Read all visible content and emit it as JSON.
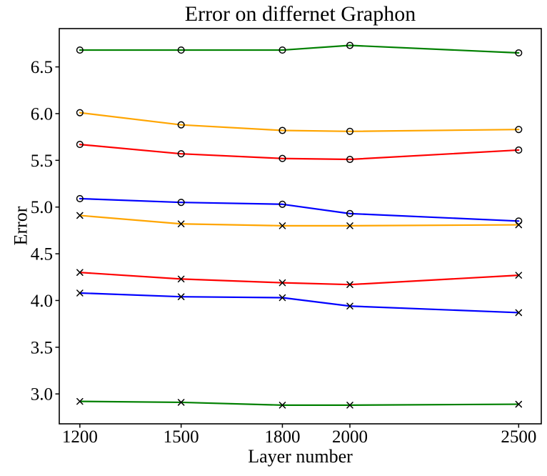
{
  "figure": {
    "title": "Error on differnet Graphon",
    "xlabel": "Layer number",
    "ylabel": "Error"
  },
  "chart_data": {
    "type": "line",
    "title": "Error on differnet Graphon",
    "xlabel": "Layer number",
    "ylabel": "Error",
    "grid": false,
    "legend": "none",
    "x": [
      1200,
      1500,
      1800,
      2000,
      2500
    ],
    "xlim": [
      1139,
      2567
    ],
    "ylim": [
      2.68,
      6.91
    ],
    "xticks": {
      "values": [
        1200,
        1500,
        1800,
        2000,
        2500
      ],
      "labels": [
        "1200",
        "1500",
        "1800",
        "2000",
        "2500"
      ]
    },
    "yticks": {
      "values": [
        3.0,
        3.5,
        4.0,
        4.5,
        5.0,
        5.5,
        6.0,
        6.5
      ],
      "labels": [
        "3.0",
        "3.5",
        "4.0",
        "4.5",
        "5.0",
        "5.5",
        "6.0",
        "6.5"
      ]
    },
    "marker_edge_color": "#000000",
    "colors": {
      "green": "#008000",
      "orange": "#FFA500",
      "red": "#FF0000",
      "blue": "#0000FF"
    },
    "series": [
      {
        "name": "green-circle",
        "color": "#008000",
        "marker": "circle",
        "values": [
          6.68,
          6.68,
          6.68,
          6.73,
          6.65
        ]
      },
      {
        "name": "orange-circle",
        "color": "#FFA500",
        "marker": "circle",
        "values": [
          6.01,
          5.88,
          5.82,
          5.81,
          5.83
        ]
      },
      {
        "name": "red-circle",
        "color": "#FF0000",
        "marker": "circle",
        "values": [
          5.67,
          5.57,
          5.52,
          5.51,
          5.61
        ]
      },
      {
        "name": "blue-circle",
        "color": "#0000FF",
        "marker": "circle",
        "values": [
          5.09,
          5.05,
          5.03,
          4.93,
          4.85
        ]
      },
      {
        "name": "orange-x",
        "color": "#FFA500",
        "marker": "x",
        "values": [
          4.91,
          4.82,
          4.8,
          4.8,
          4.81
        ]
      },
      {
        "name": "red-x",
        "color": "#FF0000",
        "marker": "x",
        "values": [
          4.3,
          4.23,
          4.19,
          4.17,
          4.27
        ]
      },
      {
        "name": "blue-x",
        "color": "#0000FF",
        "marker": "x",
        "values": [
          4.08,
          4.04,
          4.03,
          3.94,
          3.87
        ]
      },
      {
        "name": "green-x",
        "color": "#008000",
        "marker": "x",
        "values": [
          2.92,
          2.91,
          2.88,
          2.88,
          2.89
        ]
      }
    ]
  }
}
